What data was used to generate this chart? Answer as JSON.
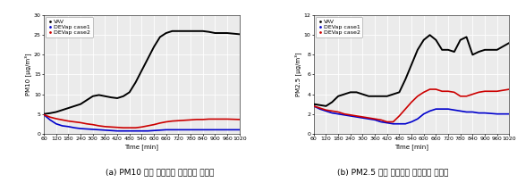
{
  "pm10": {
    "ylabel": "PM10 [μg/m³]",
    "ylim": [
      0,
      30
    ],
    "yticks": [
      0,
      5,
      10,
      15,
      20,
      25,
      30
    ],
    "caption": "(a) PM10 실내 미세먼지 농도변화 그래프",
    "vav": {
      "color": "black",
      "x": [
        60,
        90,
        120,
        150,
        180,
        210,
        240,
        270,
        300,
        330,
        360,
        390,
        420,
        450,
        480,
        510,
        540,
        570,
        600,
        630,
        660,
        690,
        720,
        750,
        780,
        810,
        840,
        870,
        900,
        960,
        1020
      ],
      "y": [
        5.0,
        5.2,
        5.5,
        6.0,
        6.5,
        7.0,
        7.5,
        8.5,
        9.5,
        9.8,
        9.5,
        9.2,
        9.0,
        9.5,
        10.5,
        13.0,
        16.0,
        19.0,
        22.0,
        24.5,
        25.5,
        26.0,
        26.0,
        26.0,
        26.0,
        26.0,
        26.0,
        25.8,
        25.5,
        25.5,
        25.2
      ]
    },
    "case1": {
      "color": "#0000cc",
      "x": [
        60,
        90,
        120,
        150,
        180,
        210,
        240,
        270,
        300,
        330,
        360,
        390,
        420,
        450,
        480,
        510,
        540,
        570,
        600,
        630,
        660,
        690,
        720,
        750,
        780,
        810,
        840,
        870,
        900,
        960,
        1020
      ],
      "y": [
        4.8,
        3.5,
        2.5,
        2.0,
        1.8,
        1.5,
        1.3,
        1.2,
        1.1,
        1.0,
        0.9,
        0.8,
        0.7,
        0.7,
        0.7,
        0.7,
        0.7,
        0.7,
        0.8,
        0.9,
        1.0,
        1.0,
        1.0,
        1.0,
        1.0,
        1.0,
        1.0,
        1.0,
        1.0,
        1.0,
        1.0
      ]
    },
    "case2": {
      "color": "#cc0000",
      "x": [
        60,
        90,
        120,
        150,
        180,
        210,
        240,
        270,
        300,
        330,
        360,
        390,
        420,
        450,
        480,
        510,
        540,
        570,
        600,
        630,
        660,
        690,
        720,
        750,
        780,
        810,
        840,
        870,
        900,
        960,
        1020
      ],
      "y": [
        4.8,
        4.2,
        3.8,
        3.5,
        3.2,
        3.0,
        2.8,
        2.5,
        2.3,
        2.0,
        1.8,
        1.7,
        1.6,
        1.5,
        1.5,
        1.5,
        1.7,
        2.0,
        2.3,
        2.7,
        3.0,
        3.2,
        3.3,
        3.4,
        3.5,
        3.6,
        3.6,
        3.7,
        3.7,
        3.7,
        3.6
      ]
    }
  },
  "pm25": {
    "ylabel": "PM2.5 [μg/m³]",
    "ylim": [
      0,
      12
    ],
    "yticks": [
      0,
      2,
      4,
      6,
      8,
      10,
      12
    ],
    "caption": "(b) PM2.5 실내 미세먼지 농도변화 그래프",
    "vav": {
      "color": "black",
      "x": [
        60,
        90,
        120,
        150,
        180,
        210,
        240,
        270,
        300,
        330,
        360,
        390,
        420,
        450,
        480,
        510,
        540,
        570,
        600,
        630,
        660,
        690,
        720,
        750,
        780,
        810,
        840,
        870,
        900,
        960,
        1020
      ],
      "y": [
        3.0,
        2.9,
        2.8,
        3.2,
        3.8,
        4.0,
        4.2,
        4.2,
        4.0,
        3.8,
        3.8,
        3.8,
        3.8,
        4.0,
        4.2,
        5.5,
        7.0,
        8.5,
        9.5,
        10.0,
        9.5,
        8.5,
        8.5,
        8.3,
        9.5,
        9.8,
        8.0,
        8.3,
        8.5,
        8.5,
        9.2
      ]
    },
    "case1": {
      "color": "#0000cc",
      "x": [
        60,
        90,
        120,
        150,
        180,
        210,
        240,
        270,
        300,
        330,
        360,
        390,
        420,
        450,
        480,
        510,
        540,
        570,
        600,
        630,
        660,
        690,
        720,
        750,
        780,
        810,
        840,
        870,
        900,
        960,
        1020
      ],
      "y": [
        2.8,
        2.5,
        2.3,
        2.1,
        2.0,
        1.9,
        1.8,
        1.7,
        1.6,
        1.5,
        1.4,
        1.2,
        1.1,
        1.0,
        1.0,
        1.0,
        1.2,
        1.5,
        2.0,
        2.3,
        2.5,
        2.5,
        2.5,
        2.4,
        2.3,
        2.2,
        2.2,
        2.1,
        2.1,
        2.0,
        2.0
      ]
    },
    "case2": {
      "color": "#cc0000",
      "x": [
        60,
        90,
        120,
        150,
        180,
        210,
        240,
        270,
        300,
        330,
        360,
        390,
        420,
        450,
        480,
        510,
        540,
        570,
        600,
        630,
        660,
        690,
        720,
        750,
        780,
        810,
        840,
        870,
        900,
        960,
        1020
      ],
      "y": [
        2.8,
        2.6,
        2.4,
        2.3,
        2.2,
        2.0,
        1.9,
        1.8,
        1.7,
        1.6,
        1.5,
        1.4,
        1.2,
        1.2,
        1.8,
        2.5,
        3.2,
        3.8,
        4.2,
        4.5,
        4.5,
        4.3,
        4.3,
        4.2,
        3.8,
        3.8,
        4.0,
        4.2,
        4.3,
        4.3,
        4.5
      ]
    }
  },
  "xticks": [
    60,
    120,
    180,
    240,
    300,
    360,
    420,
    480,
    540,
    600,
    660,
    720,
    780,
    840,
    900,
    960,
    1020
  ],
  "xlabel": "Time [min]",
  "legend_labels": [
    "VAV",
    "DEVap case1",
    "DEVap case2"
  ],
  "legend_colors": [
    "black",
    "#0000cc",
    "#cc0000"
  ],
  "bg_color": "#ebebeb",
  "grid_color": "white",
  "fontsize_axis": 5.0,
  "fontsize_tick": 4.5,
  "fontsize_caption": 6.5,
  "fontsize_legend": 4.5,
  "line_width": 1.0
}
